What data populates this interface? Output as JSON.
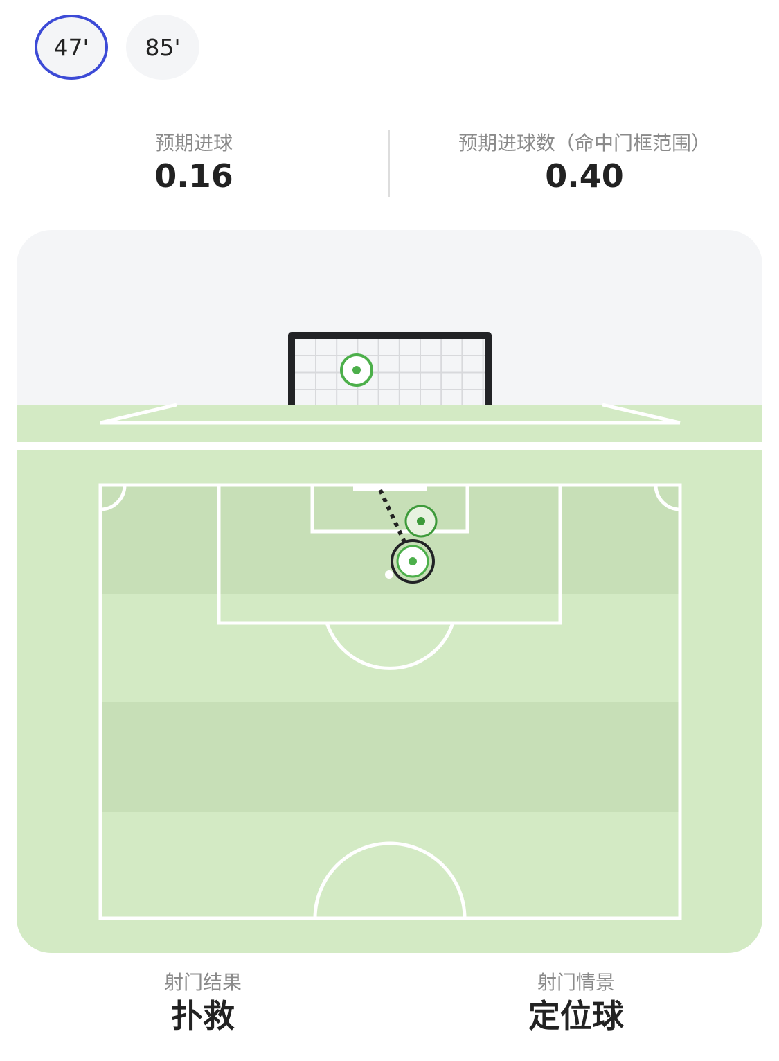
{
  "tabs": [
    {
      "label": "47'",
      "active": true
    },
    {
      "label": "85'",
      "active": false
    }
  ],
  "stats": {
    "xg": {
      "label": "预期进球",
      "value": "0.16"
    },
    "xgot": {
      "label": "预期进球数（命中门框范围）",
      "value": "0.40"
    }
  },
  "colors": {
    "accent": "#3c4ad6",
    "pitch_light": "#d3eac4",
    "pitch_dark": "#c7dfb7",
    "shot_green": "#4caf4a",
    "frame": "#222326"
  },
  "shot": {
    "result": {
      "label": "射门结果",
      "value": "扑救"
    },
    "situation": {
      "label": "射门情景",
      "value": "定位球"
    }
  }
}
